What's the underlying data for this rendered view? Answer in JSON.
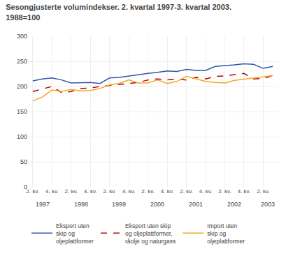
{
  "chart_data": {
    "type": "line",
    "title": "Sesongjusterte volumindekser. 2. kvartal 1997-3. kvartal 2003.",
    "subtitle": "1988=100",
    "categories": [
      "2. kv.",
      null,
      "4. kv.",
      null,
      "2. kv.",
      null,
      "4. kv.",
      null,
      "2. kv.",
      null,
      "4. kv.",
      null,
      "2. kv.",
      null,
      "4. kv.",
      null,
      "2. kv.",
      null,
      "4. kv.",
      null,
      "2. kv.",
      null,
      "4. kv.",
      null,
      "2. kv.",
      null
    ],
    "annotations": [
      "1997",
      "1998",
      "1999",
      "2000",
      "2001",
      "2002",
      "2003"
    ],
    "series": [
      {
        "name": "Eksport uten\nskip og\noljeplattformer",
        "color": "#3355aa",
        "line_style": "solid",
        "values": [
          211,
          215,
          217,
          213,
          207,
          207,
          208,
          206,
          217,
          218,
          221,
          224,
          226,
          228,
          231,
          230,
          234,
          232,
          232,
          240,
          241,
          243,
          245,
          244,
          236,
          240
        ]
      },
      {
        "name": "Eksport uten skip\nog oljeplattformer,\nråolje og naturgass",
        "color": "#bb0000",
        "line_style": "dashed",
        "values": [
          190,
          195,
          200,
          188,
          190,
          196,
          197,
          200,
          202,
          203,
          205,
          208,
          213,
          215,
          213,
          215,
          213,
          218,
          215,
          220,
          221,
          223,
          226,
          215,
          216,
          222
        ]
      },
      {
        "name": "Import uten\nskip og\noljeplattformer",
        "color": "#f5a623",
        "line_style": "solid",
        "values": [
          171,
          179,
          193,
          190,
          194,
          191,
          192,
          196,
          203,
          206,
          213,
          207,
          207,
          213,
          206,
          210,
          220,
          215,
          210,
          208,
          207,
          212,
          214,
          217,
          219,
          222
        ]
      }
    ],
    "ylim": [
      0,
      300
    ],
    "yticks": [
      0,
      50,
      100,
      150,
      200,
      250,
      300
    ],
    "grid": true,
    "legend": "bottom"
  }
}
